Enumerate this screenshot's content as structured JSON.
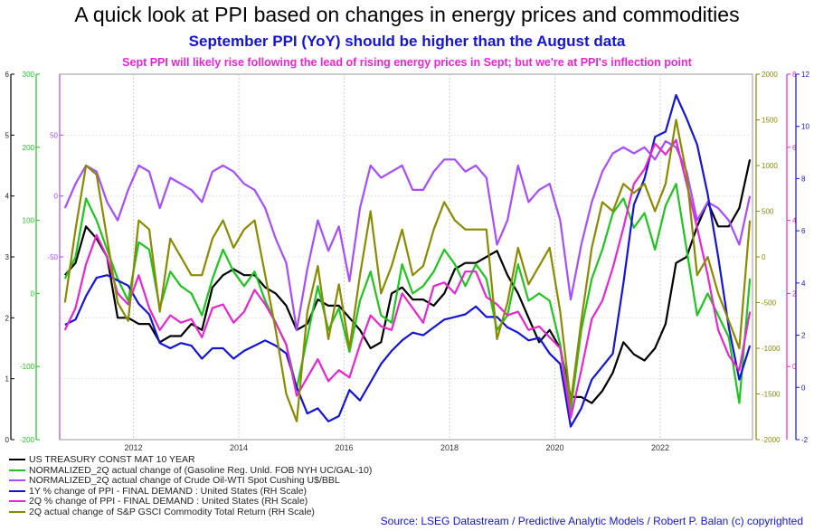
{
  "title": "A quick look at PPI based on changes in energy prices and commodities",
  "subtitle": "September PPI (YoY) should be higher than the August data",
  "annotation": "Sept PPI will likely rise following the lead of rising energy prices in Sept; but we're at PPI's inflection point",
  "source": "Source: LSEG Datastream / Predictive Analytic Models / Robert P. Balan (c) copyrighted",
  "chart_data": {
    "type": "line",
    "x_range": [
      2010.6,
      2023.75
    ],
    "x_ticks": [
      "2012",
      "2014",
      "2016",
      "2018",
      "2020",
      "2022"
    ],
    "grid": true,
    "legend_placement": "bottom-left",
    "axes": {
      "treasury": {
        "side": "left",
        "range": [
          0,
          6
        ],
        "ticks": [
          "0",
          "1",
          "2",
          "3",
          "4",
          "5",
          "6"
        ],
        "color": "#000000"
      },
      "gasoline": {
        "side": "left",
        "range": [
          -200,
          300
        ],
        "ticks": [
          "-200",
          "-100",
          "0",
          "100",
          "200",
          "300"
        ],
        "color": "#1fc41f"
      },
      "crude": {
        "side": "left",
        "range": [
          -200,
          100
        ],
        "ticks": [
          "-50",
          "0",
          "50"
        ],
        "color": "#a64dff"
      },
      "gsci": {
        "side": "right",
        "range": [
          -2000,
          2000
        ],
        "ticks": [
          "-2000",
          "-1500",
          "-1000",
          "-500",
          "0",
          "500",
          "1000",
          "1500",
          "2000"
        ],
        "color": "#8a8a00"
      },
      "ppi2q": {
        "side": "right",
        "range": [
          -2,
          8
        ],
        "ticks": [
          "0",
          "2",
          "4",
          "6",
          "8"
        ],
        "color": "#e826d0"
      },
      "ppi1y": {
        "side": "right",
        "range": [
          -2,
          12
        ],
        "ticks": [
          "-2",
          "0",
          "2",
          "4",
          "6",
          "8",
          "10",
          "12"
        ],
        "color": "#1414d8"
      }
    },
    "series": [
      {
        "name": "US TREASURY CONST MAT 10 YEAR",
        "axis": "treasury",
        "color": "#000000",
        "x": [
          2010.7,
          2010.9,
          2011.1,
          2011.3,
          2011.5,
          2011.7,
          2011.9,
          2012.1,
          2012.3,
          2012.5,
          2012.7,
          2012.9,
          2013.1,
          2013.3,
          2013.5,
          2013.7,
          2013.9,
          2014.1,
          2014.3,
          2014.5,
          2014.7,
          2014.9,
          2015.1,
          2015.3,
          2015.5,
          2015.7,
          2015.9,
          2016.1,
          2016.3,
          2016.5,
          2016.7,
          2016.9,
          2017.1,
          2017.3,
          2017.5,
          2017.7,
          2017.9,
          2018.1,
          2018.3,
          2018.5,
          2018.7,
          2018.9,
          2019.1,
          2019.3,
          2019.5,
          2019.7,
          2019.9,
          2020.1,
          2020.3,
          2020.5,
          2020.7,
          2020.9,
          2021.1,
          2021.3,
          2021.5,
          2021.7,
          2021.9,
          2022.1,
          2022.3,
          2022.5,
          2022.7,
          2022.9,
          2023.1,
          2023.3,
          2023.5,
          2023.7
        ],
        "values": [
          2.7,
          2.9,
          3.5,
          3.3,
          3.0,
          2.0,
          2.0,
          1.9,
          1.9,
          1.6,
          1.7,
          1.7,
          1.9,
          1.8,
          2.5,
          2.7,
          2.8,
          2.7,
          2.7,
          2.5,
          2.4,
          2.2,
          1.8,
          1.9,
          2.3,
          2.2,
          2.2,
          2.0,
          1.8,
          1.5,
          1.6,
          2.4,
          2.5,
          2.3,
          2.3,
          2.2,
          2.4,
          2.8,
          2.9,
          2.9,
          3.0,
          3.1,
          2.7,
          2.4,
          2.0,
          1.6,
          1.8,
          1.5,
          0.7,
          0.7,
          0.6,
          0.8,
          1.1,
          1.6,
          1.4,
          1.3,
          1.5,
          1.9,
          2.9,
          3.0,
          3.5,
          3.9,
          3.5,
          3.5,
          3.8,
          4.6
        ]
      },
      {
        "name": "NORMALIZED_2Q actual change of (Gasoline Reg. Unld. FOB NYH UC/GAL-10)",
        "axis": "gasoline",
        "color": "#1fc41f",
        "x": [
          2010.7,
          2010.9,
          2011.1,
          2011.3,
          2011.5,
          2011.7,
          2011.9,
          2012.1,
          2012.3,
          2012.5,
          2012.7,
          2012.9,
          2013.1,
          2013.3,
          2013.5,
          2013.7,
          2013.9,
          2014.1,
          2014.3,
          2014.5,
          2014.7,
          2014.9,
          2015.1,
          2015.3,
          2015.5,
          2015.7,
          2015.9,
          2016.1,
          2016.3,
          2016.5,
          2016.7,
          2016.9,
          2017.1,
          2017.3,
          2017.5,
          2017.7,
          2017.9,
          2018.1,
          2018.3,
          2018.5,
          2018.7,
          2018.9,
          2019.1,
          2019.3,
          2019.5,
          2019.7,
          2019.9,
          2020.1,
          2020.3,
          2020.5,
          2020.7,
          2020.9,
          2021.1,
          2021.3,
          2021.5,
          2021.7,
          2021.9,
          2022.1,
          2022.3,
          2022.5,
          2022.7,
          2022.9,
          2023.1,
          2023.3,
          2023.5,
          2023.7
        ],
        "values": [
          20,
          50,
          130,
          100,
          60,
          20,
          -10,
          70,
          60,
          -20,
          30,
          10,
          0,
          -30,
          20,
          60,
          30,
          10,
          30,
          -10,
          -40,
          -70,
          -130,
          -60,
          10,
          -50,
          -20,
          -80,
          -10,
          30,
          -30,
          -40,
          40,
          0,
          10,
          30,
          60,
          40,
          10,
          40,
          20,
          -50,
          -30,
          40,
          -10,
          0,
          -10,
          -70,
          -160,
          -50,
          20,
          60,
          110,
          130,
          90,
          110,
          60,
          120,
          150,
          60,
          -30,
          0,
          -30,
          -60,
          -150,
          20
        ]
      },
      {
        "name": "NORMALIZED_2Q actual change of Crude Oil-WTI Spot Cushing U$/BBL",
        "axis": "crude",
        "color": "#a64dff",
        "x": [
          2010.7,
          2010.9,
          2011.1,
          2011.3,
          2011.5,
          2011.7,
          2011.9,
          2012.1,
          2012.3,
          2012.5,
          2012.7,
          2012.9,
          2013.1,
          2013.3,
          2013.5,
          2013.7,
          2013.9,
          2014.1,
          2014.3,
          2014.5,
          2014.7,
          2014.9,
          2015.1,
          2015.3,
          2015.5,
          2015.7,
          2015.9,
          2016.1,
          2016.3,
          2016.5,
          2016.7,
          2016.9,
          2017.1,
          2017.3,
          2017.5,
          2017.7,
          2017.9,
          2018.1,
          2018.3,
          2018.5,
          2018.7,
          2018.9,
          2019.1,
          2019.3,
          2019.5,
          2019.7,
          2019.9,
          2020.1,
          2020.3,
          2020.5,
          2020.7,
          2020.9,
          2021.1,
          2021.3,
          2021.5,
          2021.7,
          2021.9,
          2022.1,
          2022.3,
          2022.5,
          2022.7,
          2022.9,
          2023.1,
          2023.3,
          2023.5,
          2023.7
        ],
        "values": [
          -10,
          10,
          25,
          20,
          -5,
          -20,
          5,
          25,
          20,
          -10,
          15,
          10,
          5,
          -5,
          20,
          25,
          20,
          10,
          5,
          -10,
          -35,
          -55,
          -110,
          -60,
          -20,
          -45,
          -25,
          -70,
          -10,
          25,
          15,
          20,
          25,
          5,
          5,
          20,
          30,
          30,
          20,
          25,
          15,
          -40,
          -20,
          25,
          -5,
          5,
          10,
          -20,
          -85,
          -40,
          -5,
          20,
          35,
          40,
          35,
          40,
          30,
          45,
          40,
          20,
          -20,
          -5,
          -10,
          -20,
          -40,
          0
        ]
      },
      {
        "name": "1Y % change of PPI - FINAL DEMAND : United States (RH Scale)",
        "axis": "ppi1y",
        "color": "#1414d8",
        "x": [
          2010.7,
          2010.9,
          2011.1,
          2011.3,
          2011.5,
          2011.7,
          2011.9,
          2012.1,
          2012.3,
          2012.5,
          2012.7,
          2012.9,
          2013.1,
          2013.3,
          2013.5,
          2013.7,
          2013.9,
          2014.1,
          2014.3,
          2014.5,
          2014.7,
          2014.9,
          2015.1,
          2015.3,
          2015.5,
          2015.7,
          2015.9,
          2016.1,
          2016.3,
          2016.5,
          2016.7,
          2016.9,
          2017.1,
          2017.3,
          2017.5,
          2017.7,
          2017.9,
          2018.1,
          2018.3,
          2018.5,
          2018.7,
          2018.9,
          2019.1,
          2019.3,
          2019.5,
          2019.7,
          2019.9,
          2020.1,
          2020.3,
          2020.5,
          2020.7,
          2020.9,
          2021.1,
          2021.3,
          2021.5,
          2021.7,
          2021.9,
          2022.1,
          2022.3,
          2022.5,
          2022.7,
          2022.9,
          2023.1,
          2023.3,
          2023.5,
          2023.7
        ],
        "values": [
          2.4,
          2.6,
          3.5,
          4.2,
          4.3,
          4.1,
          3.9,
          3.2,
          2.8,
          1.7,
          1.5,
          1.7,
          1.6,
          1.1,
          1.5,
          1.5,
          1.1,
          1.4,
          1.6,
          1.8,
          1.6,
          1.3,
          0.0,
          -1.0,
          -0.8,
          -1.3,
          -1.1,
          -0.1,
          -0.5,
          0.2,
          0.9,
          1.4,
          1.8,
          2.1,
          2.0,
          2.3,
          2.6,
          2.7,
          2.8,
          3.1,
          2.7,
          2.7,
          2.3,
          2.1,
          1.8,
          1.9,
          1.3,
          0.9,
          -1.5,
          -0.8,
          0.3,
          0.8,
          1.3,
          4.0,
          7.0,
          8.0,
          9.6,
          9.8,
          11.2,
          10.3,
          9.3,
          7.4,
          5.0,
          2.3,
          0.3,
          1.6
        ]
      },
      {
        "name": "2Q % change of PPI - FINAL DEMAND : United States (RH Scale)",
        "axis": "ppi2q",
        "color": "#e826d0",
        "x": [
          2010.7,
          2010.9,
          2011.1,
          2011.3,
          2011.5,
          2011.7,
          2011.9,
          2012.1,
          2012.3,
          2012.5,
          2012.7,
          2012.9,
          2013.1,
          2013.3,
          2013.5,
          2013.7,
          2013.9,
          2014.1,
          2014.3,
          2014.5,
          2014.7,
          2014.9,
          2015.1,
          2015.3,
          2015.5,
          2015.7,
          2015.9,
          2016.1,
          2016.3,
          2016.5,
          2016.7,
          2016.9,
          2017.1,
          2017.3,
          2017.5,
          2017.7,
          2017.9,
          2018.1,
          2018.3,
          2018.5,
          2018.7,
          2018.9,
          2019.1,
          2019.3,
          2019.5,
          2019.7,
          2019.9,
          2020.1,
          2020.3,
          2020.5,
          2020.7,
          2020.9,
          2021.1,
          2021.3,
          2021.5,
          2021.7,
          2021.9,
          2022.1,
          2022.3,
          2022.5,
          2022.7,
          2022.9,
          2023.1,
          2023.3,
          2023.5,
          2023.7
        ],
        "values": [
          1.0,
          1.6,
          2.8,
          3.6,
          3.0,
          2.0,
          1.7,
          2.5,
          1.6,
          1.0,
          1.4,
          1.2,
          1.3,
          0.8,
          1.6,
          1.7,
          1.2,
          1.5,
          2.1,
          1.7,
          1.2,
          0.6,
          -0.8,
          -0.3,
          0.2,
          -0.4,
          -0.1,
          -0.3,
          0.6,
          1.4,
          1.1,
          1.0,
          2.0,
          1.6,
          1.2,
          2.2,
          2.3,
          2.0,
          2.6,
          2.6,
          1.9,
          1.7,
          1.4,
          1.5,
          1.0,
          1.1,
          0.8,
          0.5,
          -1.4,
          -0.1,
          1.3,
          1.8,
          2.7,
          3.8,
          5.0,
          5.4,
          6.1,
          5.8,
          6.2,
          5.0,
          3.8,
          2.5,
          1.0,
          0.3,
          -0.1,
          1.5
        ]
      },
      {
        "name": "2Q actual change of S&P GSCI Commodity Total Return (RH Scale)",
        "axis": "gsci",
        "color": "#8a8a00",
        "x": [
          2010.7,
          2010.9,
          2011.1,
          2011.3,
          2011.5,
          2011.7,
          2011.9,
          2012.1,
          2012.3,
          2012.5,
          2012.7,
          2012.9,
          2013.1,
          2013.3,
          2013.5,
          2013.7,
          2013.9,
          2014.1,
          2014.3,
          2014.5,
          2014.7,
          2014.9,
          2015.1,
          2015.3,
          2015.5,
          2015.7,
          2015.9,
          2016.1,
          2016.3,
          2016.5,
          2016.7,
          2016.9,
          2017.1,
          2017.3,
          2017.5,
          2017.7,
          2017.9,
          2018.1,
          2018.3,
          2018.5,
          2018.7,
          2018.9,
          2019.1,
          2019.3,
          2019.5,
          2019.7,
          2019.9,
          2020.1,
          2020.3,
          2020.5,
          2020.7,
          2020.9,
          2021.1,
          2021.3,
          2021.5,
          2021.7,
          2021.9,
          2022.1,
          2022.3,
          2022.5,
          2022.7,
          2022.9,
          2023.1,
          2023.3,
          2023.5,
          2023.7
        ],
        "values": [
          -500,
          300,
          1000,
          900,
          200,
          -500,
          -700,
          400,
          300,
          -600,
          200,
          0,
          -200,
          -200,
          200,
          400,
          100,
          300,
          400,
          -200,
          -800,
          -1500,
          -1800,
          -600,
          -100,
          -900,
          -300,
          -1000,
          -200,
          500,
          -400,
          -100,
          300,
          -200,
          -100,
          300,
          600,
          400,
          300,
          300,
          300,
          -900,
          -500,
          100,
          -300,
          -100,
          100,
          -600,
          -1600,
          -700,
          100,
          600,
          500,
          800,
          700,
          800,
          500,
          800,
          1500,
          900,
          -200,
          0,
          -400,
          -700,
          -1000,
          400
        ]
      }
    ]
  }
}
